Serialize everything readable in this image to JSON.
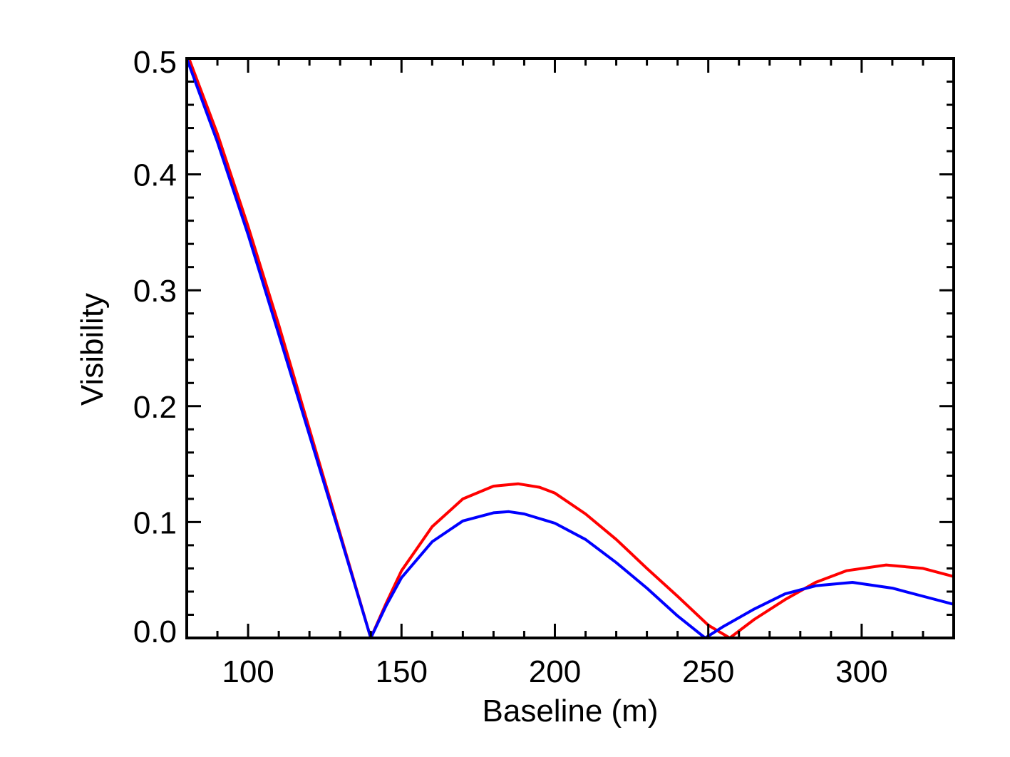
{
  "chart_data": {
    "type": "line",
    "title": "",
    "xlabel": "Baseline (m)",
    "ylabel": "Visibility",
    "xlim": [
      80,
      330
    ],
    "ylim": [
      0.0,
      0.5
    ],
    "x_ticks": [
      100,
      150,
      200,
      250,
      300
    ],
    "x_tick_labels": [
      "100",
      "150",
      "200",
      "250",
      "300"
    ],
    "x_minor_step": 10,
    "y_ticks": [
      0.0,
      0.1,
      0.2,
      0.3,
      0.4,
      0.5
    ],
    "y_tick_labels": [
      "0.0",
      "0.1",
      "0.2",
      "0.3",
      "0.4",
      "0.5"
    ],
    "y_minor_step": 0.02,
    "grid": false,
    "legend": "none",
    "series": [
      {
        "color": "#ff0000",
        "x": [
          80,
          90,
          100,
          110,
          120,
          130,
          140,
          145,
          150,
          160,
          170,
          180,
          188,
          195,
          200,
          210,
          220,
          230,
          240,
          250,
          257,
          265,
          275,
          285,
          295,
          308,
          320,
          330
        ],
        "y": [
          0.505,
          0.435,
          0.355,
          0.27,
          0.18,
          0.09,
          0.0,
          0.03,
          0.058,
          0.096,
          0.12,
          0.131,
          0.133,
          0.13,
          0.125,
          0.107,
          0.085,
          0.06,
          0.036,
          0.011,
          0.0,
          0.016,
          0.033,
          0.048,
          0.058,
          0.063,
          0.06,
          0.053
        ]
      },
      {
        "color": "#0000ff",
        "x": [
          80,
          90,
          100,
          110,
          120,
          130,
          140,
          145,
          150,
          160,
          170,
          180,
          185,
          190,
          200,
          210,
          220,
          230,
          240,
          249,
          255,
          265,
          275,
          285,
          297,
          310,
          320,
          330
        ],
        "y": [
          0.5,
          0.428,
          0.348,
          0.262,
          0.175,
          0.088,
          0.0,
          0.028,
          0.052,
          0.083,
          0.101,
          0.108,
          0.109,
          0.107,
          0.099,
          0.085,
          0.065,
          0.043,
          0.019,
          0.0,
          0.01,
          0.025,
          0.038,
          0.045,
          0.048,
          0.043,
          0.036,
          0.029
        ]
      }
    ]
  }
}
